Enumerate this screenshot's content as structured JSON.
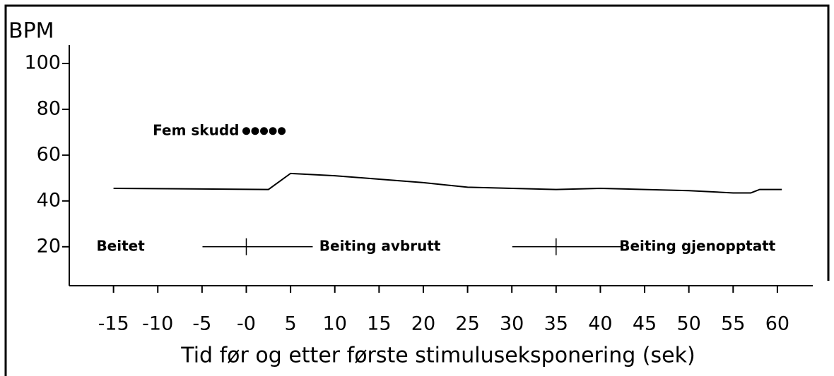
{
  "chart_data": {
    "type": "line",
    "y_label": "BPM",
    "x_label": "Tid før og etter første stimuluseksponering (sek)",
    "x": [
      -15,
      2.5,
      5,
      10,
      15,
      20,
      25,
      30,
      35,
      40,
      45,
      50,
      55,
      57,
      58,
      60.5
    ],
    "series": [
      {
        "color": "#000000",
        "values": [
          45.5,
          45,
          52,
          51,
          49.5,
          48,
          46,
          45.5,
          45,
          45.5,
          45,
          44.5,
          43.5,
          43.5,
          45,
          45
        ]
      }
    ],
    "xlim": [
      -20,
      64
    ],
    "ylim": [
      3,
      108
    ],
    "xticks": [
      -15,
      -10,
      -5,
      {
        "value": 0,
        "label": "-0"
      },
      5,
      10,
      15,
      20,
      25,
      30,
      35,
      40,
      45,
      50,
      55,
      60
    ],
    "yticks": [
      20,
      40,
      60,
      80,
      100
    ],
    "shots": {
      "label": "Fem skudd",
      "x": [
        0,
        1,
        2,
        3,
        4
      ],
      "values": [
        70.5,
        70.5,
        70.5,
        70.5,
        70.5
      ]
    },
    "phases": {
      "labels": [
        "Beitet",
        "Beiting avbrutt",
        "Beiting gjenopptatt"
      ],
      "boundaries": [
        0,
        35
      ],
      "y": 20
    }
  }
}
